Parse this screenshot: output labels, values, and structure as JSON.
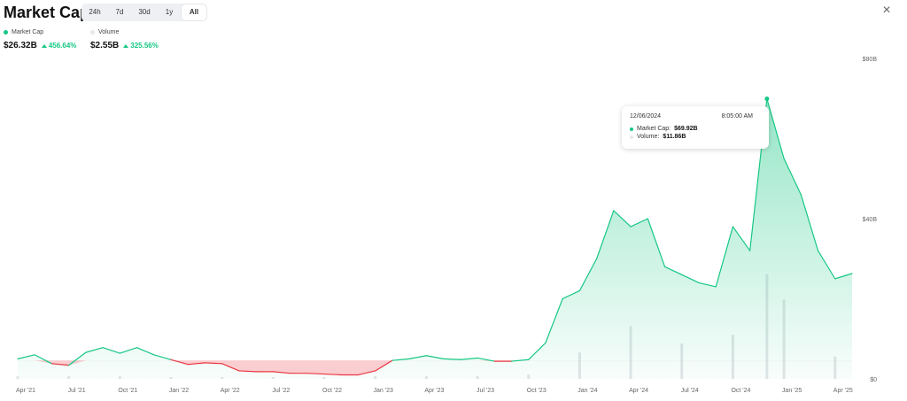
{
  "header": {
    "title": "Market Cap",
    "close_icon": "×"
  },
  "range_tabs": [
    {
      "label": "24h"
    },
    {
      "label": "7d"
    },
    {
      "label": "30d"
    },
    {
      "label": "1y"
    },
    {
      "label": "All",
      "active": true
    }
  ],
  "metrics": {
    "market_cap": {
      "label": "Market Cap",
      "value": "$26.32B",
      "change": "456.64%",
      "color": "#16c784"
    },
    "volume": {
      "label": "Volume",
      "value": "$2.55B",
      "change": "325.56%",
      "color": "#e6e8ec"
    }
  },
  "tooltip": {
    "date": "12/06/2024",
    "time": "8:05:00 AM",
    "market_cap_label": "Market Cap:",
    "market_cap_value": "$69.92B",
    "volume_label": "Volume:",
    "volume_value": "$11.86B"
  },
  "colors": {
    "up": "#16c784",
    "down": "#ea3943",
    "volume": "#e3e5e8"
  },
  "chart_data": {
    "type": "area",
    "title": "Market Cap",
    "ylim": [
      0,
      80
    ],
    "y_ticks": [
      "$0",
      "$40B",
      "$80B"
    ],
    "x_ticks": [
      "Apr '21",
      "Jul '21",
      "Oct '21",
      "Jan '22",
      "Apr '22",
      "Jul '22",
      "Oct '22",
      "Jan '23",
      "Apr '23",
      "Jul '23",
      "Oct '23",
      "Jan '24",
      "Apr '24",
      "Jul '24",
      "Oct '24",
      "Jan '25",
      "Apr '25"
    ],
    "baseline": 4.6,
    "series": [
      {
        "name": "Market Cap",
        "unit": "B USD",
        "x": [
          "2021-04",
          "2021-05",
          "2021-06",
          "2021-07",
          "2021-08",
          "2021-09",
          "2021-10",
          "2021-11",
          "2021-12",
          "2022-01",
          "2022-02",
          "2022-03",
          "2022-04",
          "2022-05",
          "2022-06",
          "2022-07",
          "2022-08",
          "2022-09",
          "2022-10",
          "2022-11",
          "2022-12",
          "2023-01",
          "2023-02",
          "2023-03",
          "2023-04",
          "2023-05",
          "2023-06",
          "2023-07",
          "2023-08",
          "2023-09",
          "2023-10",
          "2023-11",
          "2023-12",
          "2024-01",
          "2024-02",
          "2024-03",
          "2024-04",
          "2024-05",
          "2024-06",
          "2024-07",
          "2024-08",
          "2024-09",
          "2024-10",
          "2024-11",
          "2024-12",
          "2025-01",
          "2025-02",
          "2025-03",
          "2025-04",
          "2025-05"
        ],
        "values": [
          5.0,
          6.0,
          3.8,
          3.4,
          6.6,
          7.8,
          6.4,
          7.8,
          6.0,
          4.8,
          3.6,
          4.0,
          3.8,
          2.0,
          1.8,
          1.8,
          1.4,
          1.4,
          1.2,
          1.0,
          1.0,
          2.0,
          4.6,
          5.0,
          5.8,
          5.0,
          4.8,
          5.2,
          4.4,
          4.4,
          4.8,
          9.0,
          20.0,
          22.0,
          30.0,
          42.0,
          38.0,
          40.0,
          28.0,
          26.0,
          24.0,
          23.0,
          38.0,
          32.0,
          69.92,
          55.0,
          46.0,
          32.0,
          25.0,
          26.3
        ]
      },
      {
        "name": "Volume",
        "unit": "B USD",
        "x": [
          "2021-04",
          "2021-07",
          "2021-10",
          "2022-01",
          "2022-04",
          "2022-07",
          "2022-10",
          "2023-01",
          "2023-04",
          "2023-07",
          "2023-10",
          "2024-01",
          "2024-04",
          "2024-07",
          "2024-10",
          "2024-12",
          "2025-01",
          "2025-04"
        ],
        "values": [
          0.3,
          0.3,
          0.3,
          0.2,
          0.2,
          0.2,
          0.2,
          0.3,
          0.3,
          0.3,
          0.5,
          3.0,
          6.0,
          4.0,
          5.0,
          11.86,
          9.0,
          2.55
        ]
      }
    ]
  }
}
